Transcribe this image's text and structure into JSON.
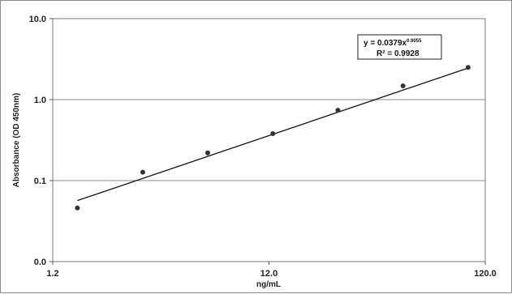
{
  "chart_data": {
    "type": "scatter",
    "title": "",
    "xlabel": "ng/mL",
    "ylabel": "Absorbance (OD 450nm)",
    "xscale": "log",
    "yscale": "log",
    "xlim": [
      1.2,
      120.0
    ],
    "ylim_labels": [
      "0.0",
      "0.1",
      "1.0",
      "10.0"
    ],
    "xtick_labels": [
      "1.2",
      "12.0",
      "120.0"
    ],
    "ytick_values": [
      0.01,
      0.1,
      1.0,
      10.0
    ],
    "xtick_values": [
      1.2,
      12.0,
      120.0
    ],
    "grid": "horizontal",
    "series": [
      {
        "x": [
          1.56,
          3.13,
          6.25,
          12.5,
          25,
          50,
          100
        ],
        "y": [
          0.046,
          0.127,
          0.22,
          0.38,
          0.74,
          1.48,
          2.5
        ],
        "color": "#333333"
      }
    ],
    "trendline": {
      "type": "power",
      "coefficient": 0.0379,
      "exponent": 0.9055,
      "equation_text": "y = 0.0379x",
      "equation_exponent_text": "0.9055",
      "r2_text": "R² = 0.9928",
      "color": "#111111"
    }
  }
}
